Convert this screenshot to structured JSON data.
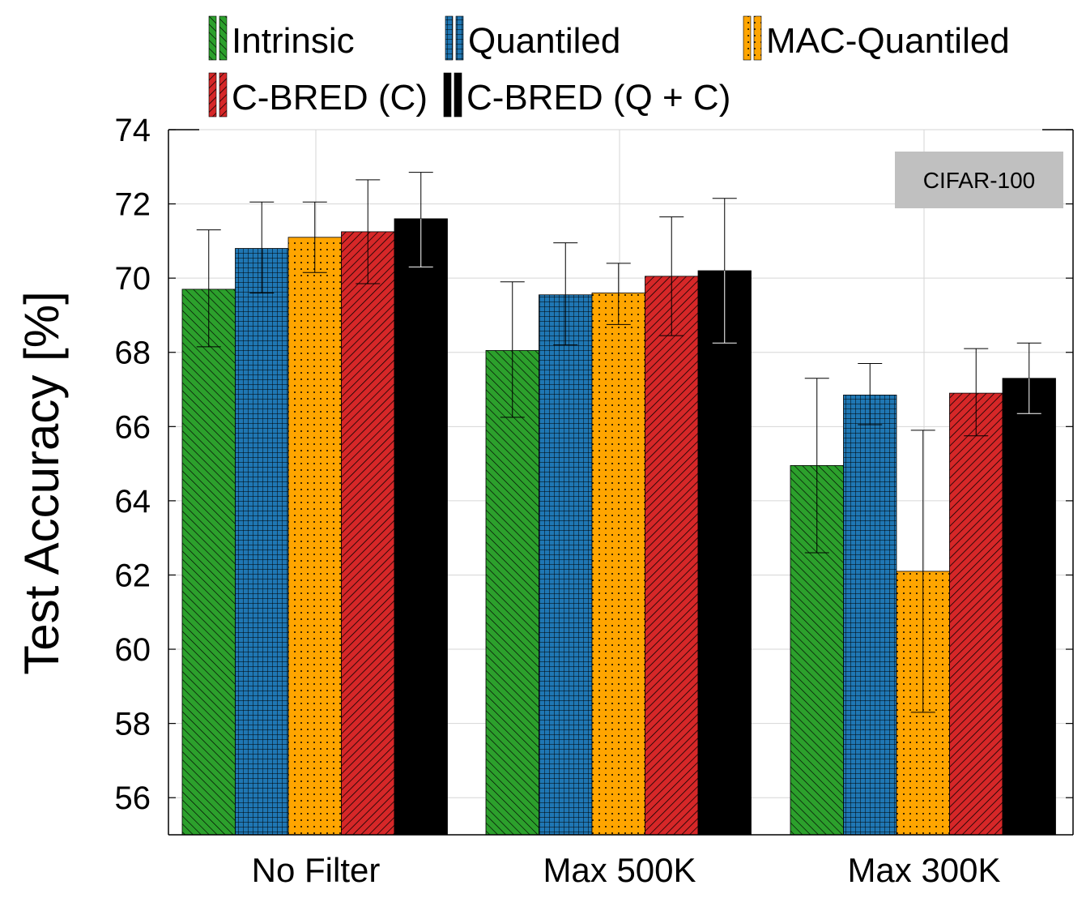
{
  "chart_data": {
    "type": "bar",
    "title": "",
    "xlabel": "",
    "ylabel": "Test Accuracy [%]",
    "ylim": [
      55,
      74
    ],
    "yticks": [
      56,
      58,
      60,
      62,
      64,
      66,
      68,
      70,
      72,
      74
    ],
    "grid": true,
    "legend_position": "top",
    "annotation": "CIFAR-100",
    "categories": [
      "No Filter",
      "Max 500K",
      "Max 300K"
    ],
    "series": [
      {
        "name": "Intrinsic",
        "color": "#2ca02c",
        "pattern": "diag-fine",
        "values": [
          69.7,
          68.05,
          64.95
        ],
        "err_low": [
          68.15,
          66.25,
          62.6
        ],
        "err_high": [
          71.3,
          69.9,
          67.3
        ]
      },
      {
        "name": "Quantiled",
        "color": "#1f77b4",
        "pattern": "grid",
        "values": [
          70.8,
          69.55,
          66.85
        ],
        "err_low": [
          69.6,
          68.2,
          66.05
        ],
        "err_high": [
          72.05,
          70.95,
          67.7
        ]
      },
      {
        "name": "MAC-Quantiled",
        "color": "#ffa500",
        "pattern": "dots",
        "values": [
          71.1,
          69.6,
          62.1
        ],
        "err_low": [
          70.15,
          68.75,
          58.3
        ],
        "err_high": [
          72.05,
          70.4,
          65.9
        ]
      },
      {
        "name": "C-BRED (C)",
        "color": "#d62728",
        "pattern": "diag-reverse",
        "values": [
          71.25,
          70.05,
          66.9
        ],
        "err_low": [
          69.85,
          68.45,
          65.75
        ],
        "err_high": [
          72.65,
          71.65,
          68.1
        ]
      },
      {
        "name": "C-BRED (Q + C)",
        "color": "#000000",
        "pattern": "solid",
        "values": [
          71.6,
          70.2,
          67.3
        ],
        "err_low": [
          70.3,
          68.25,
          66.35
        ],
        "err_high": [
          72.85,
          72.15,
          68.25
        ]
      }
    ]
  }
}
